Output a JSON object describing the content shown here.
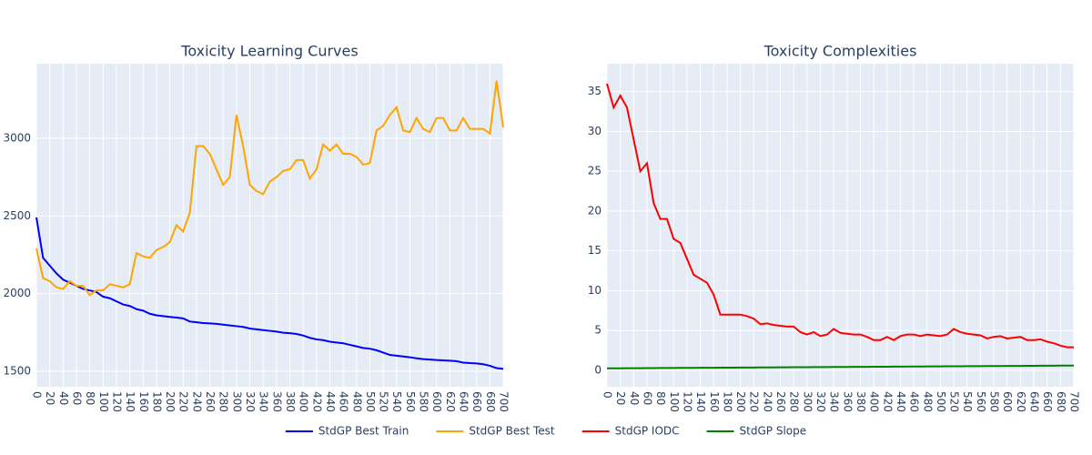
{
  "chart_data": [
    {
      "type": "line",
      "title": "Toxicity Learning Curves",
      "x": [
        0,
        10,
        20,
        30,
        40,
        50,
        60,
        70,
        80,
        90,
        100,
        110,
        120,
        130,
        140,
        150,
        160,
        170,
        180,
        190,
        200,
        210,
        220,
        230,
        240,
        250,
        260,
        270,
        280,
        290,
        300,
        310,
        320,
        330,
        340,
        350,
        360,
        370,
        380,
        390,
        400,
        410,
        420,
        430,
        440,
        450,
        460,
        470,
        480,
        490,
        500,
        510,
        520,
        530,
        540,
        550,
        560,
        570,
        580,
        590,
        600,
        610,
        620,
        630,
        640,
        650,
        660,
        670,
        680,
        690,
        700
      ],
      "xlim": [
        0,
        700
      ],
      "xticks": [
        0,
        20,
        40,
        60,
        80,
        100,
        120,
        140,
        160,
        180,
        200,
        220,
        240,
        260,
        280,
        300,
        320,
        340,
        360,
        380,
        400,
        420,
        440,
        460,
        480,
        500,
        520,
        540,
        560,
        580,
        600,
        620,
        640,
        660,
        680,
        700
      ],
      "ylim": [
        1400,
        3480
      ],
      "yticks": [
        1500,
        2000,
        2500,
        3000
      ],
      "grid": true,
      "series": [
        {
          "name": "StdGP Best Train",
          "color": "#0000ff",
          "values": [
            2490,
            2230,
            2180,
            2130,
            2090,
            2070,
            2050,
            2030,
            2020,
            2010,
            1980,
            1970,
            1950,
            1930,
            1920,
            1900,
            1890,
            1870,
            1860,
            1855,
            1850,
            1845,
            1840,
            1820,
            1815,
            1810,
            1808,
            1805,
            1800,
            1795,
            1790,
            1785,
            1775,
            1770,
            1765,
            1760,
            1755,
            1748,
            1745,
            1740,
            1730,
            1715,
            1705,
            1700,
            1690,
            1685,
            1680,
            1670,
            1660,
            1650,
            1645,
            1635,
            1620,
            1605,
            1600,
            1595,
            1590,
            1583,
            1578,
            1575,
            1572,
            1570,
            1568,
            1565,
            1555,
            1552,
            1550,
            1545,
            1535,
            1520,
            1515
          ]
        },
        {
          "name": "StdGP Best Test",
          "color": "#ffa500",
          "values": [
            2290,
            2100,
            2080,
            2040,
            2030,
            2080,
            2050,
            2050,
            1990,
            2020,
            2020,
            2060,
            2050,
            2040,
            2060,
            2260,
            2240,
            2230,
            2280,
            2300,
            2330,
            2440,
            2400,
            2520,
            2950,
            2950,
            2900,
            2800,
            2700,
            2750,
            3150,
            2950,
            2700,
            2660,
            2640,
            2720,
            2750,
            2790,
            2800,
            2860,
            2860,
            2740,
            2800,
            2960,
            2920,
            2960,
            2900,
            2900,
            2880,
            2830,
            2840,
            3050,
            3080,
            3150,
            3200,
            3050,
            3040,
            3130,
            3060,
            3040,
            3130,
            3130,
            3050,
            3050,
            3130,
            3060,
            3060,
            3060,
            3030,
            3370,
            3070
          ]
        }
      ]
    },
    {
      "type": "line",
      "title": "Toxicity Complexities",
      "x": [
        0,
        10,
        20,
        30,
        40,
        50,
        60,
        70,
        80,
        90,
        100,
        110,
        120,
        130,
        140,
        150,
        160,
        170,
        180,
        190,
        200,
        210,
        220,
        230,
        240,
        250,
        260,
        270,
        280,
        290,
        300,
        310,
        320,
        330,
        340,
        350,
        360,
        370,
        380,
        390,
        400,
        410,
        420,
        430,
        440,
        450,
        460,
        470,
        480,
        490,
        500,
        510,
        520,
        530,
        540,
        550,
        560,
        570,
        580,
        590,
        600,
        610,
        620,
        630,
        640,
        650,
        660,
        670,
        680,
        690,
        700
      ],
      "xlim": [
        0,
        700
      ],
      "xticks": [
        0,
        20,
        40,
        60,
        80,
        100,
        120,
        140,
        160,
        180,
        200,
        220,
        240,
        260,
        280,
        300,
        320,
        340,
        360,
        380,
        400,
        420,
        440,
        460,
        480,
        500,
        520,
        540,
        560,
        580,
        600,
        620,
        640,
        660,
        680,
        700
      ],
      "ylim": [
        -2.06,
        38.5
      ],
      "yticks": [
        0,
        5,
        10,
        15,
        20,
        25,
        30,
        35
      ],
      "grid": true,
      "series": [
        {
          "name": "StdGP IODC",
          "color": "#ff0000",
          "values": [
            36,
            33,
            34.5,
            33,
            29,
            25,
            26,
            21,
            19,
            19,
            16.5,
            16,
            14,
            12,
            11.5,
            11,
            9.5,
            7,
            7,
            7,
            7,
            6.8,
            6.5,
            5.8,
            5.9,
            5.7,
            5.6,
            5.5,
            5.5,
            4.8,
            4.5,
            4.8,
            4.3,
            4.5,
            5.2,
            4.7,
            4.6,
            4.5,
            4.5,
            4.2,
            3.8,
            3.8,
            4.2,
            3.8,
            4.3,
            4.5,
            4.5,
            4.3,
            4.5,
            4.4,
            4.3,
            4.5,
            5.2,
            4.8,
            4.6,
            4.5,
            4.4,
            4.0,
            4.2,
            4.3,
            4.0,
            4.1,
            4.2,
            3.8,
            3.8,
            3.9,
            3.6,
            3.4,
            3.1,
            2.9,
            2.9
          ]
        },
        {
          "name": "StdGP Slope",
          "color": "#008000",
          "values": [
            0.25,
            0.255,
            0.26,
            0.265,
            0.27,
            0.275,
            0.28,
            0.285,
            0.29,
            0.295,
            0.3,
            0.305,
            0.31,
            0.315,
            0.32,
            0.325,
            0.33,
            0.335,
            0.34,
            0.345,
            0.35,
            0.355,
            0.36,
            0.365,
            0.37,
            0.375,
            0.38,
            0.385,
            0.39,
            0.395,
            0.4,
            0.405,
            0.41,
            0.415,
            0.42,
            0.425,
            0.43,
            0.435,
            0.44,
            0.445,
            0.45,
            0.455,
            0.46,
            0.465,
            0.47,
            0.475,
            0.48,
            0.485,
            0.49,
            0.495,
            0.5,
            0.505,
            0.51,
            0.515,
            0.52,
            0.525,
            0.53,
            0.535,
            0.54,
            0.545,
            0.55,
            0.555,
            0.56,
            0.565,
            0.57,
            0.575,
            0.58,
            0.585,
            0.59,
            0.595,
            0.6
          ]
        }
      ]
    }
  ]
}
